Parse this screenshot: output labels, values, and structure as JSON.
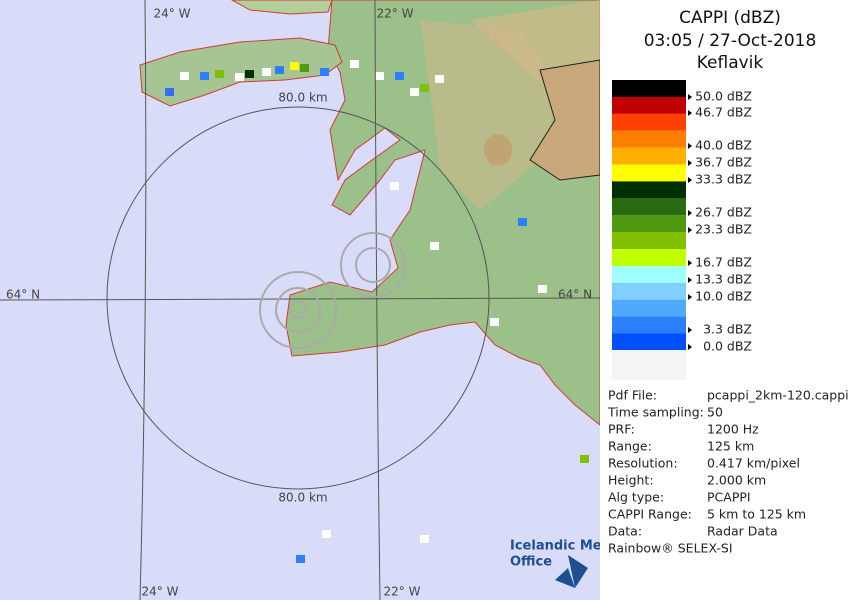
{
  "header": {
    "title": "CAPPI (dBZ)",
    "time": "03:05 / 27-Oct-2018",
    "station": "Keflavik"
  },
  "legend": {
    "labels": [
      "50.0 dBZ",
      "46.7 dBZ",
      "40.0 dBZ",
      "36.7 dBZ",
      "33.3 dBZ",
      "26.7 dBZ",
      "23.3 dBZ",
      "16.7 dBZ",
      "13.3 dBZ",
      "10.0 dBZ",
      "3.3 dBZ",
      "0.0 dBZ"
    ]
  },
  "info": {
    "rows": [
      [
        "Pdf File:",
        "pcappi_2km-120.cappi"
      ],
      [
        "Time sampling:",
        "50"
      ],
      [
        "PRF:",
        "1200 Hz"
      ],
      [
        "Range:",
        "125 km"
      ],
      [
        "Resolution:",
        "0.417 km/pixel"
      ],
      [
        "Height:",
        "2.000 km"
      ],
      [
        "Alg type:",
        "PCAPPI"
      ],
      [
        "CAPPI Range:",
        "5 km to 125 km"
      ],
      [
        "Data:",
        "Radar Data"
      ]
    ],
    "footer": "Rainbow® SELEX-SI"
  },
  "map": {
    "labels": {
      "lon_top_left": "24° W",
      "lon_top_right": "22° W",
      "lat_left": "64° N",
      "lat_right": "64° N",
      "range_top": "80.0 km",
      "range_bottom": "80.0 km",
      "lon_bottom_left": "24° W",
      "lon_bottom_right": "22° W"
    },
    "logo": [
      "Icelandic Met",
      "Office"
    ]
  }
}
